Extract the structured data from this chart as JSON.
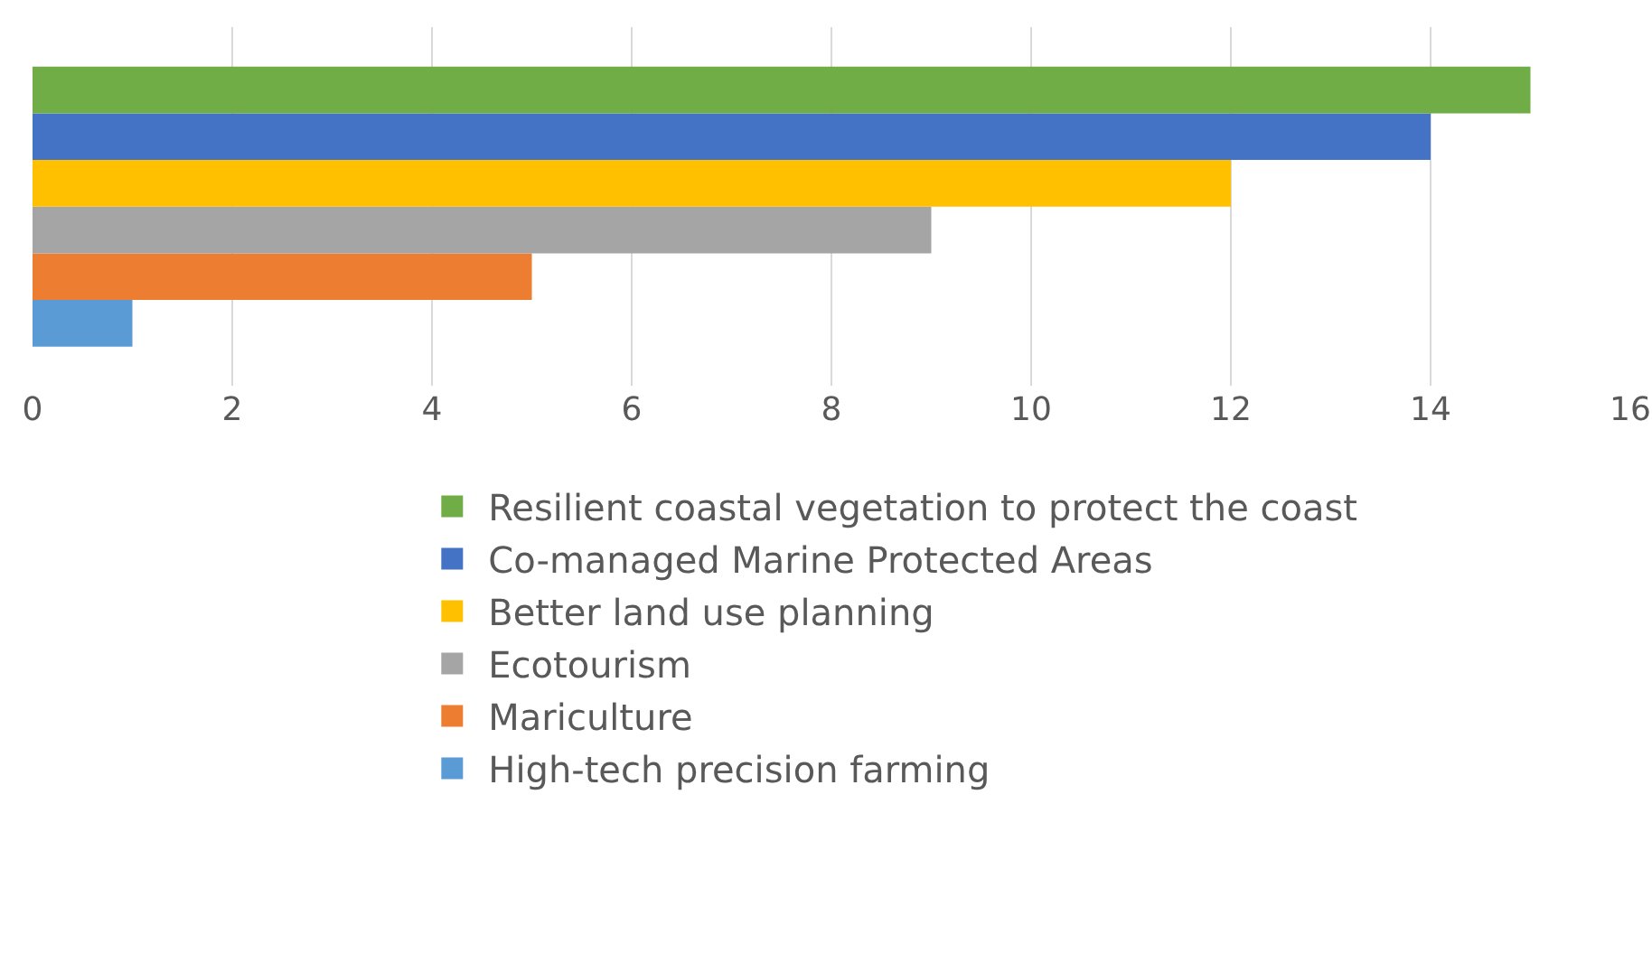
{
  "chart_data": {
    "type": "bar",
    "orientation": "horizontal",
    "categories": [
      null
    ],
    "series": [
      {
        "name": "Resilient coastal vegetation to protect the coast",
        "color": "#70ad47",
        "values": [
          15
        ]
      },
      {
        "name": "Co-managed Marine Protected Areas",
        "color": "#4472c4",
        "values": [
          14
        ]
      },
      {
        "name": "Better land use planning",
        "color": "#ffc000",
        "values": [
          12
        ]
      },
      {
        "name": "Ecotourism",
        "color": "#a5a5a5",
        "values": [
          9
        ]
      },
      {
        "name": "Mariculture",
        "color": "#ed7d31",
        "values": [
          5
        ]
      },
      {
        "name": "High-tech precision farming",
        "color": "#5b9bd5",
        "values": [
          1
        ]
      }
    ],
    "xlim": [
      0,
      16
    ],
    "xticks": [
      0,
      2,
      4,
      6,
      8,
      10,
      12,
      14,
      16
    ],
    "grid": "x",
    "legend": "bottom",
    "tick_labels": "x"
  }
}
